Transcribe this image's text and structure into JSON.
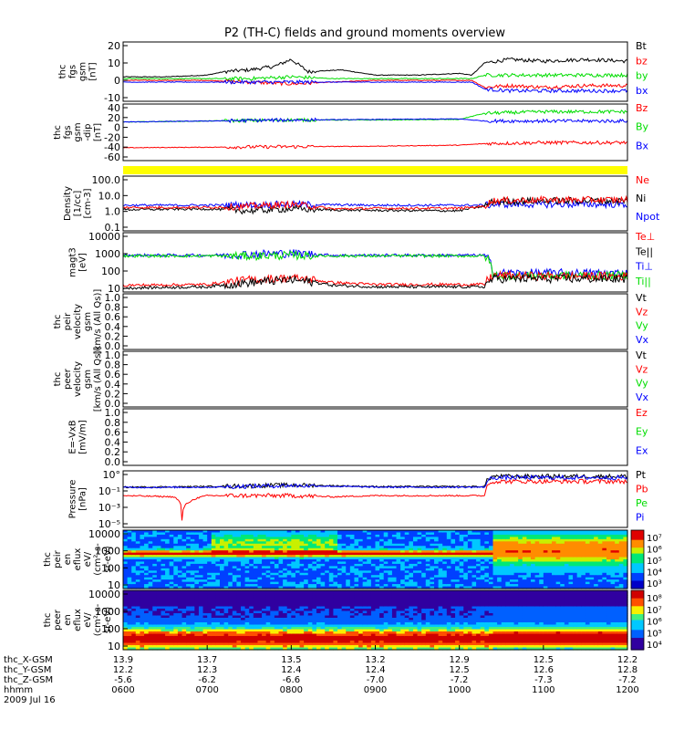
{
  "chart_data": {
    "type": "line",
    "title": "P2 (TH-C) fields and ground moments overview",
    "panels": [
      {
        "id": "fgs_gsm",
        "ylabel": [
          "thc",
          "fgs",
          "gsm",
          "[nT]"
        ],
        "yticks": [
          "20",
          "10",
          "0",
          "-10"
        ],
        "ylim": [
          -12,
          22
        ],
        "legend": [
          {
            "label": "Bt",
            "color": "#000000"
          },
          {
            "label": "bz",
            "color": "#ff0000"
          },
          {
            "label": "by",
            "color": "#00dd00"
          },
          {
            "label": "bx",
            "color": "#0000ff"
          }
        ],
        "series": [
          {
            "name": "Bt",
            "color": "#000000",
            "x": [
              6.0,
              6.5,
              7.0,
              7.2,
              7.5,
              7.8,
              8.0,
              8.2,
              8.6,
              9.0,
              9.5,
              10.0,
              10.15,
              10.3,
              10.6,
              11.0,
              11.5,
              12.0
            ],
            "values": [
              2,
              2,
              3,
              5,
              6,
              8,
              12,
              5,
              6,
              3,
              3,
              4,
              3,
              10,
              12,
              11,
              12,
              11
            ]
          },
          {
            "name": "bz",
            "color": "#ff0000",
            "x": [
              6.0,
              6.5,
              7.0,
              7.5,
              8.0,
              8.5,
              9.0,
              9.5,
              10.0,
              10.15,
              10.3,
              10.6,
              11.0,
              11.5,
              12.0
            ],
            "values": [
              0,
              0,
              0,
              -1,
              -2,
              -1,
              0,
              0,
              0,
              0,
              -4,
              -3,
              -4,
              -3,
              -3
            ]
          },
          {
            "name": "by",
            "color": "#00dd00",
            "x": [
              6.0,
              6.5,
              7.0,
              7.5,
              8.0,
              8.5,
              9.0,
              9.5,
              10.0,
              10.15,
              10.3,
              10.6,
              11.0,
              11.5,
              12.0
            ],
            "values": [
              1,
              1,
              1,
              1,
              2,
              1,
              1,
              1,
              1,
              1,
              3,
              3,
              3,
              3,
              3
            ]
          },
          {
            "name": "bx",
            "color": "#0000ff",
            "x": [
              6.0,
              6.5,
              7.0,
              7.5,
              8.0,
              8.5,
              9.0,
              9.5,
              10.0,
              10.15,
              10.3,
              10.6,
              11.0,
              11.5,
              12.0
            ],
            "values": [
              -1,
              -1,
              -1,
              -1,
              -1,
              -1,
              -1,
              -1,
              -1,
              -1,
              -5,
              -6,
              -6,
              -6,
              -6
            ]
          }
        ]
      },
      {
        "id": "fgs_gsm_dip",
        "ylabel": [
          "thc",
          "fgs",
          "gsm",
          "-dip",
          "[nT]"
        ],
        "yticks": [
          "40",
          "20",
          "0",
          "-20",
          "-40",
          "-60"
        ],
        "ylim": [
          -65,
          45
        ],
        "legend": [
          {
            "label": "Bz",
            "color": "#ff0000"
          },
          {
            "label": "By",
            "color": "#00dd00"
          },
          {
            "label": "Bx",
            "color": "#0000ff"
          }
        ],
        "series": [
          {
            "name": "Bz",
            "color": "#ff0000",
            "x": [
              6.0,
              7.0,
              8.0,
              9.0,
              10.0,
              10.3,
              11.0,
              12.0
            ],
            "values": [
              -40,
              -39,
              -38,
              -37,
              -35,
              -32,
              -30,
              -30
            ]
          },
          {
            "name": "By",
            "color": "#00dd00",
            "x": [
              6.0,
              7.0,
              8.0,
              9.0,
              10.0,
              10.3,
              11.0,
              12.0
            ],
            "values": [
              10,
              12,
              14,
              14,
              15,
              27,
              30,
              30
            ]
          },
          {
            "name": "Bx",
            "color": "#0000ff",
            "x": [
              6.0,
              7.0,
              8.0,
              9.0,
              10.0,
              10.3,
              11.0,
              12.0
            ],
            "values": [
              10,
              12,
              14,
              15,
              16,
              12,
              12,
              12
            ]
          }
        ]
      },
      {
        "id": "yellow_bar",
        "ylabel": [],
        "yticks": [],
        "legend": [],
        "bar_color": "#ffff00"
      },
      {
        "id": "density",
        "ylabel": [
          "Density",
          "[1/cc]",
          "[cm-3]"
        ],
        "yticks": [
          "100.0",
          "10.0",
          "1.0",
          "0.1"
        ],
        "ylim": [
          0.07,
          300
        ],
        "log": true,
        "legend": [
          {
            "label": "Ne",
            "color": "#ff0000"
          },
          {
            "label": "Ni",
            "color": "#000000"
          },
          {
            "label": "Npot",
            "color": "#0000ff"
          }
        ],
        "series": [
          {
            "name": "Npot",
            "color": "#0000ff",
            "x": [
              6.0,
              7.0,
              8.0,
              9.0,
              10.0,
              10.3,
              10.5,
              11.0,
              12.0
            ],
            "values": [
              3.5,
              3.5,
              4,
              3.5,
              3.5,
              3.5,
              4,
              4,
              4
            ]
          },
          {
            "name": "Ni",
            "color": "#000000",
            "x": [
              6.0,
              7.0,
              7.5,
              8.0,
              8.5,
              9.0,
              10.0,
              10.3,
              10.4,
              11.0,
              12.0
            ],
            "values": [
              1.8,
              2.0,
              1.5,
              2,
              1.7,
              1.6,
              1.5,
              3,
              6,
              7,
              7
            ]
          },
          {
            "name": "Ne",
            "color": "#ff0000",
            "x": [
              6.0,
              7.0,
              7.5,
              8.0,
              8.5,
              9.0,
              10.0,
              10.3,
              10.4,
              11.0,
              12.0
            ],
            "values": [
              2.5,
              2.5,
              3,
              4,
              2,
              2.2,
              2.2,
              3,
              7,
              8,
              8
            ]
          }
        ]
      },
      {
        "id": "energy",
        "ylabel": [
          "magt3",
          "[eV]"
        ],
        "yticks": [
          "10000",
          "1000",
          "100",
          "10"
        ],
        "ylim": [
          8,
          11000
        ],
        "log": true,
        "legend": [
          {
            "label": "Te⊥",
            "color": "#ff0000"
          },
          {
            "label": "Te||",
            "color": "#000000"
          },
          {
            "label": "Ti⊥",
            "color": "#0000ff"
          },
          {
            "label": "Ti||",
            "color": "#00dd00"
          }
        ],
        "series": [
          {
            "name": "Ti⊥",
            "color": "#0000ff",
            "x": [
              6.0,
              7.0,
              7.5,
              8.0,
              8.5,
              9.0,
              10.0,
              10.3,
              10.4,
              11.0,
              12.0
            ],
            "values": [
              700,
              700,
              800,
              900,
              700,
              700,
              700,
              700,
              80,
              80,
              80
            ]
          },
          {
            "name": "Ti||",
            "color": "#00dd00",
            "x": [
              6.0,
              7.0,
              7.5,
              8.0,
              8.5,
              9.0,
              10.0,
              10.3,
              10.4,
              11.0,
              12.0
            ],
            "values": [
              650,
              650,
              650,
              700,
              650,
              650,
              650,
              650,
              60,
              60,
              60
            ]
          },
          {
            "name": "Te⊥",
            "color": "#ff0000",
            "x": [
              6.0,
              7.0,
              7.5,
              8.0,
              8.5,
              9.0,
              10.0,
              10.3,
              10.4,
              11.0,
              12.0
            ],
            "values": [
              18,
              20,
              35,
              45,
              25,
              20,
              20,
              20,
              60,
              55,
              55
            ]
          },
          {
            "name": "Te||",
            "color": "#000000",
            "x": [
              6.0,
              7.0,
              7.5,
              8.0,
              8.5,
              9.0,
              10.0,
              10.3,
              10.4,
              11.0,
              12.0
            ],
            "values": [
              13,
              15,
              25,
              35,
              18,
              15,
              15,
              15,
              40,
              40,
              40
            ]
          }
        ]
      },
      {
        "id": "peir_velocity",
        "ylabel": [
          "thc",
          "peir",
          "velocity",
          "gsm",
          "[km/s (All Qs)]"
        ],
        "yticks": [
          "1.0",
          "0.8",
          "0.6",
          "0.4",
          "0.2",
          "0.0"
        ],
        "ylim": [
          0,
          1
        ],
        "legend": [
          {
            "label": "Vt",
            "color": "#000000"
          },
          {
            "label": "Vz",
            "color": "#ff0000"
          },
          {
            "label": "Vy",
            "color": "#00dd00"
          },
          {
            "label": "Vx",
            "color": "#0000ff"
          }
        ],
        "series": []
      },
      {
        "id": "peer_velocity",
        "ylabel": [
          "thc",
          "peer",
          "velocity",
          "gsm",
          "[km/s (All Qs)]"
        ],
        "yticks": [
          "1.0",
          "0.8",
          "0.6",
          "0.4",
          "0.2",
          "0.0"
        ],
        "ylim": [
          0,
          1
        ],
        "legend": [
          {
            "label": "Vt",
            "color": "#000000"
          },
          {
            "label": "Vz",
            "color": "#ff0000"
          },
          {
            "label": "Vy",
            "color": "#00dd00"
          },
          {
            "label": "Vx",
            "color": "#0000ff"
          }
        ],
        "series": []
      },
      {
        "id": "efield",
        "ylabel": [
          "E=-VxB",
          "[mV/m]"
        ],
        "yticks": [
          "1.0",
          "0.8",
          "0.6",
          "0.4",
          "0.2",
          "0.0"
        ],
        "ylim": [
          0,
          1
        ],
        "legend": [
          {
            "label": "Ez",
            "color": "#ff0000"
          },
          {
            "label": "Ey",
            "color": "#00dd00"
          },
          {
            "label": "Ex",
            "color": "#0000ff"
          }
        ],
        "series": []
      },
      {
        "id": "pressure",
        "ylabel": [
          "Pressure",
          "[nPa]"
        ],
        "yticks": [
          "10°",
          "10⁻¹",
          "10⁻³",
          "10⁻⁵"
        ],
        "ytick_labels_html": [
          "10^0",
          "10^-1",
          "10^-3",
          "10^-5"
        ],
        "ylim": [
          2e-06,
          1.5
        ],
        "log": true,
        "legend": [
          {
            "label": "Pt",
            "color": "#000000"
          },
          {
            "label": "Pb",
            "color": "#ff0000"
          },
          {
            "label": "Pe",
            "color": "#00dd00"
          },
          {
            "label": "Pi",
            "color": "#0000ff"
          }
        ],
        "series": [
          {
            "name": "Pt",
            "color": "#000000",
            "x": [
              6.0,
              7.0,
              8.0,
              9.0,
              10.0,
              10.3,
              10.4,
              11.0,
              12.0
            ],
            "values": [
              0.03,
              0.035,
              0.05,
              0.035,
              0.035,
              0.035,
              0.4,
              0.4,
              0.4
            ]
          },
          {
            "name": "Pb",
            "color": "#ff0000",
            "x": [
              6.0,
              6.6,
              6.7,
              6.8,
              7.0,
              8.0,
              8.5,
              9.0,
              10.0,
              10.3,
              10.4,
              11.0,
              12.0
            ],
            "values": [
              0.004,
              0.003,
              1e-05,
              0.001,
              0.004,
              0.004,
              0.003,
              0.004,
              0.004,
              0.004,
              0.12,
              0.12,
              0.12
            ]
          },
          {
            "name": "Pi",
            "color": "#0000ff",
            "x": [
              6.0,
              7.0,
              8.0,
              9.0,
              10.0,
              10.3,
              10.4,
              11.0,
              12.0
            ],
            "values": [
              0.028,
              0.03,
              0.045,
              0.03,
              0.03,
              0.03,
              0.3,
              0.3,
              0.3
            ]
          }
        ]
      },
      {
        "id": "peir_eflux",
        "ylabel": [
          "thc",
          "peir",
          "en",
          "eflux",
          "eV/",
          "(cm²-s-",
          "sr-eV)"
        ],
        "yticks": [
          "10000",
          "1000",
          "100",
          "10"
        ],
        "colorbar_ticks": [
          "10⁷",
          "10⁶",
          "10⁵",
          "10⁴",
          "10³"
        ],
        "spectrogram": true
      },
      {
        "id": "peer_eflux",
        "ylabel": [
          "thc",
          "peer",
          "en",
          "eflux",
          "eV/",
          "(cm²-s-",
          "sr-eV)"
        ],
        "yticks": [
          "10000",
          "1000",
          "100",
          "10"
        ],
        "colorbar_ticks": [
          "10⁸",
          "10⁷",
          "10⁶",
          "10⁵",
          "10⁴"
        ],
        "spectrogram": true
      }
    ],
    "xaxis": {
      "xlim": [
        6.0,
        12.0
      ],
      "rows": [
        {
          "label": "thc_X-GSM",
          "values": [
            "13.9",
            "13.7",
            "13.5",
            "13.2",
            "12.9",
            "12.5",
            "12.2"
          ]
        },
        {
          "label": "thc_Y-GSM",
          "values": [
            "12.2",
            "12.3",
            "12.4",
            "12.4",
            "12.5",
            "12.6",
            "12.8"
          ]
        },
        {
          "label": "thc_Z-GSM",
          "values": [
            "-5.6",
            "-6.2",
            "-6.6",
            "-7.0",
            "-7.2",
            "-7.3",
            "-7.2"
          ]
        },
        {
          "label": "hhmm",
          "values": [
            "0600",
            "0700",
            "0800",
            "0900",
            "1000",
            "1100",
            "1200"
          ]
        }
      ],
      "date": "2009 Jul 16"
    }
  }
}
